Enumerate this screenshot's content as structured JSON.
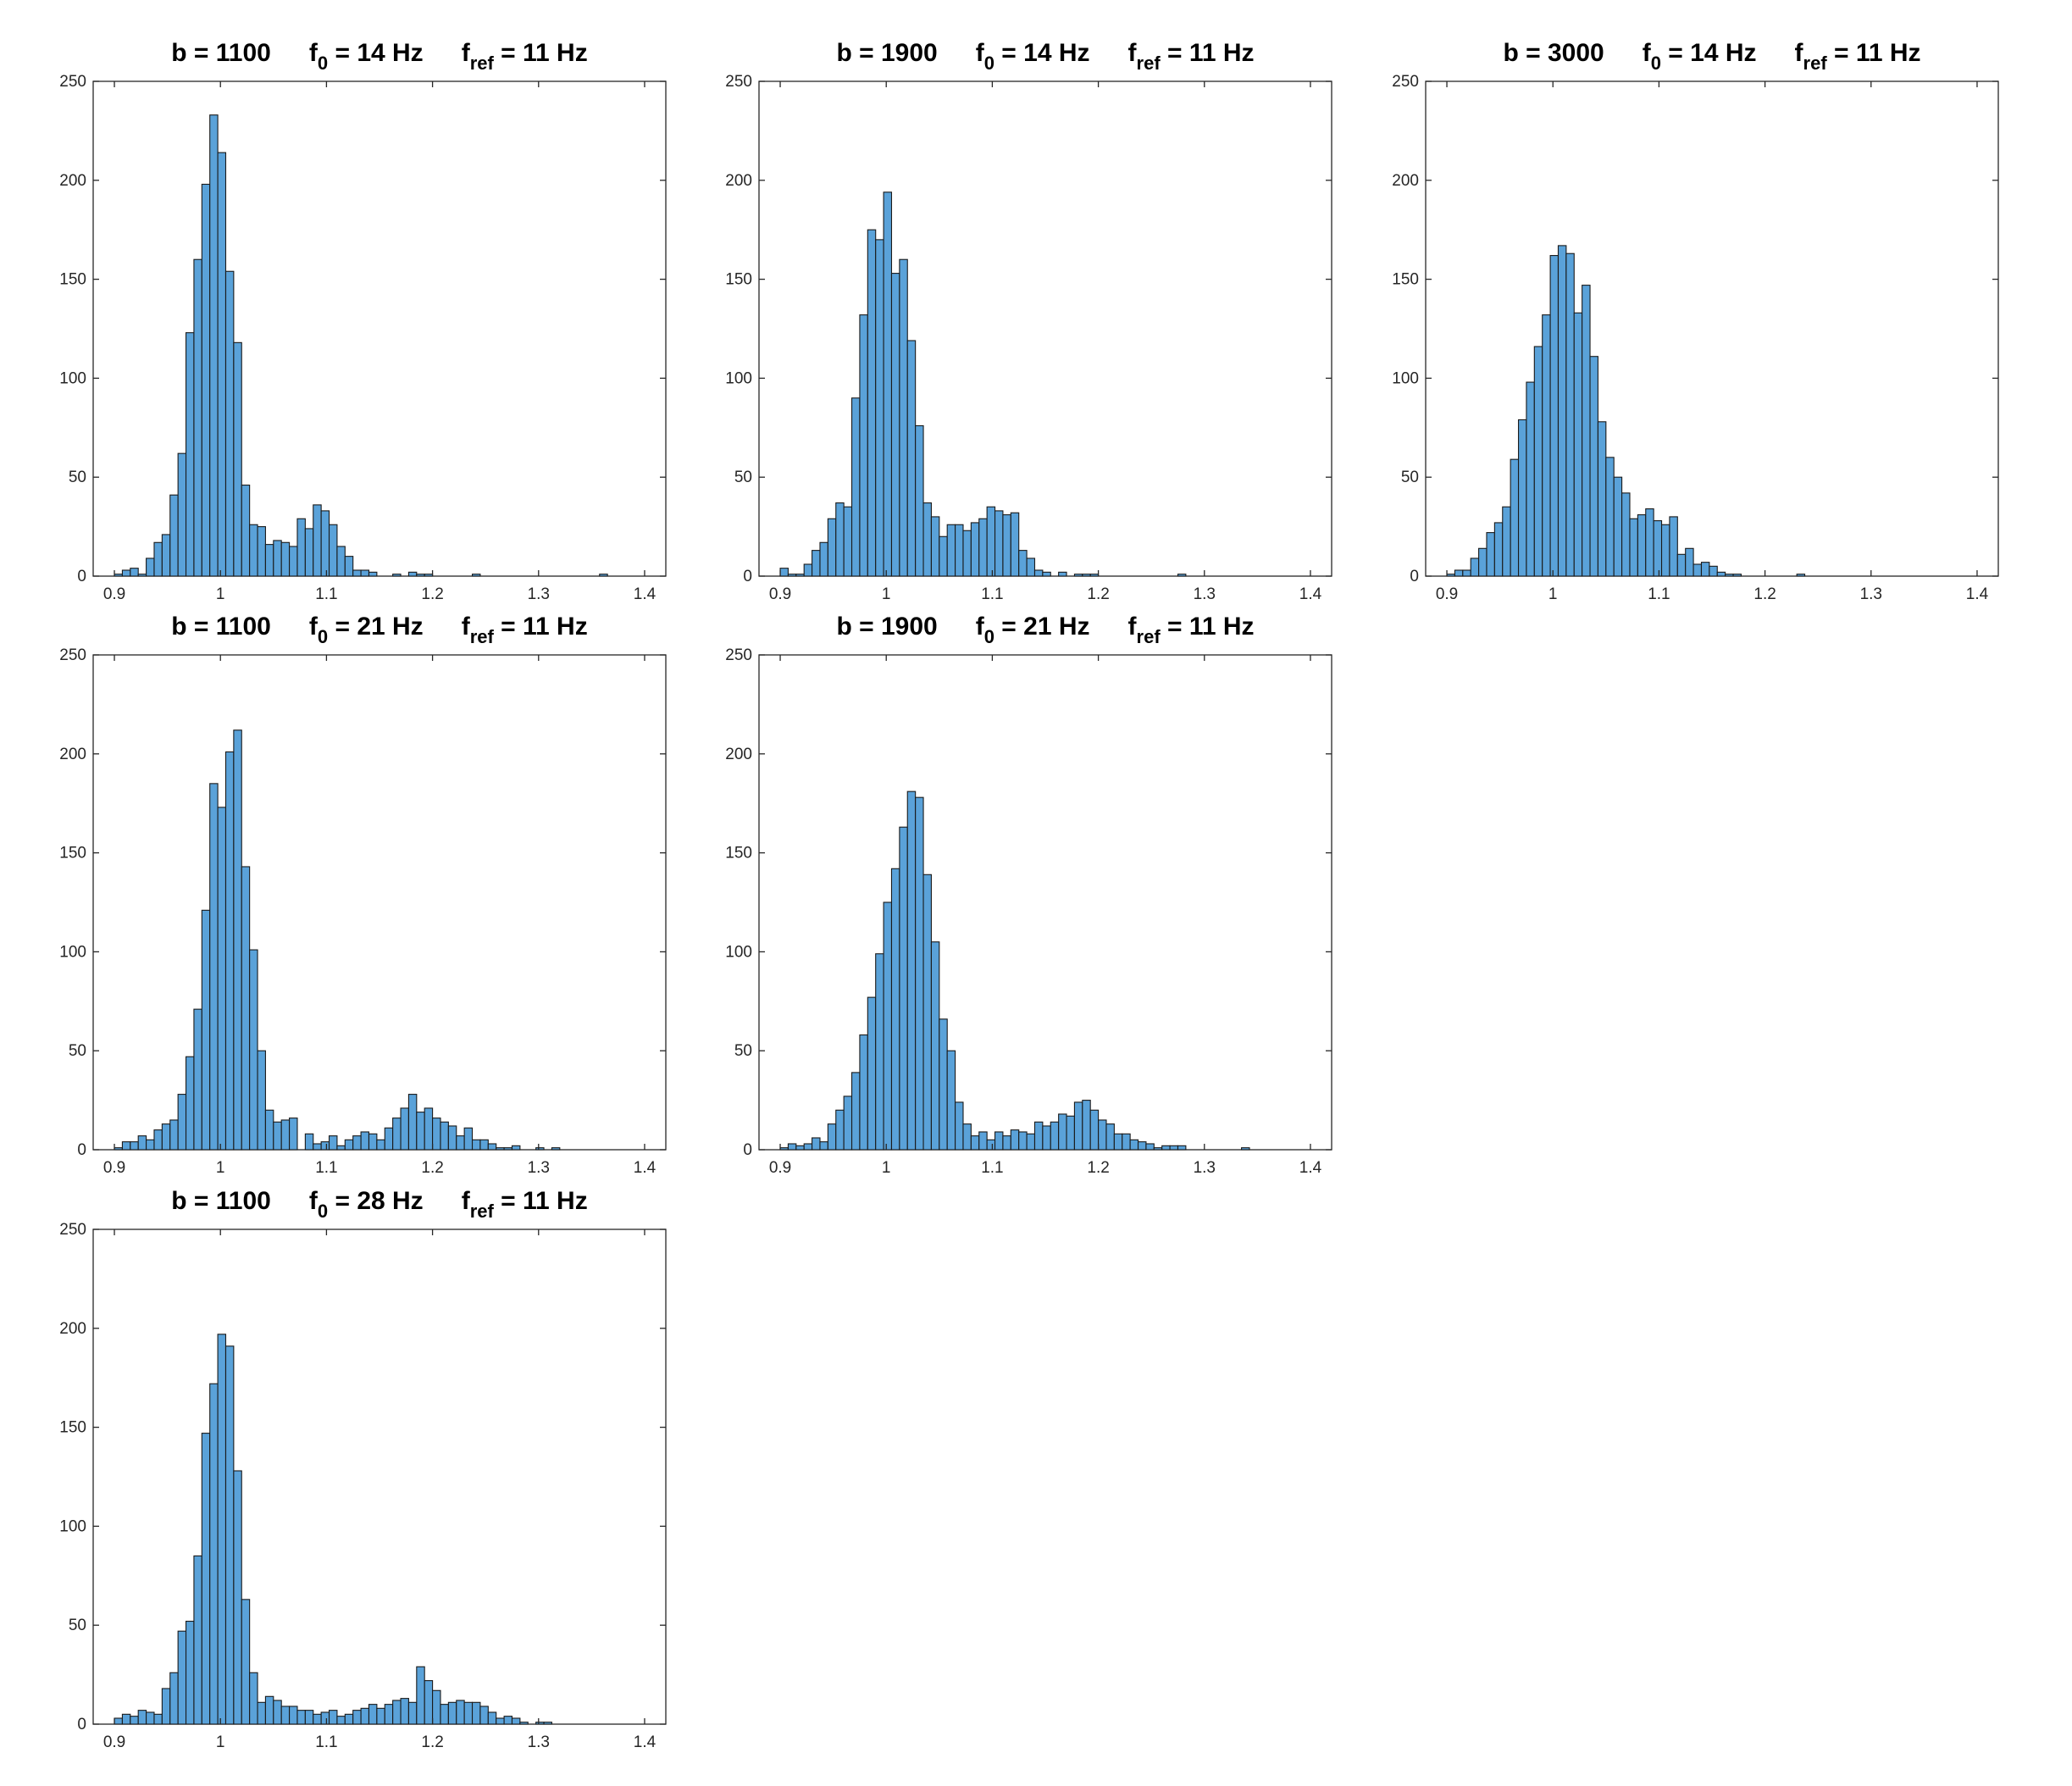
{
  "bar_color": "#5aa2d9",
  "chart_data": [
    {
      "type": "bar",
      "title_parts": {
        "b": "b = 1100",
        "f0_base": "f",
        "f0_sub": "0",
        "f0_val": " = 14 Hz",
        "fref_base": "f",
        "fref_sub": "ref",
        "fref_val": " = 11 Hz"
      },
      "xlim": [
        0.88,
        1.42
      ],
      "ylim": [
        0,
        250
      ],
      "xticks": [
        0.9,
        1,
        1.1,
        1.2,
        1.3,
        1.4
      ],
      "xtick_labels": [
        "0.9",
        "1",
        "1.1",
        "1.2",
        "1.3",
        "1.4"
      ],
      "yticks": [
        0,
        50,
        100,
        150,
        200,
        250
      ],
      "ytick_labels": [
        "0",
        "50",
        "100",
        "150",
        "200",
        "250"
      ],
      "bin_start": 0.9,
      "bin_width": 0.0075,
      "values": [
        1,
        3,
        4,
        1,
        9,
        17,
        21,
        41,
        62,
        123,
        160,
        198,
        233,
        214,
        154,
        118,
        46,
        26,
        25,
        16,
        18,
        17,
        15,
        29,
        24,
        36,
        33,
        26,
        15,
        10,
        3,
        3,
        2,
        0,
        0,
        1,
        0,
        2,
        1,
        1,
        0,
        0,
        0,
        0,
        0,
        1,
        0,
        0,
        0,
        0,
        0,
        0,
        0,
        0,
        0,
        0,
        0,
        0,
        0,
        0,
        0,
        1,
        0
      ]
    },
    {
      "type": "bar",
      "title_parts": {
        "b": "b = 1900",
        "f0_base": "f",
        "f0_sub": "0",
        "f0_val": " = 14 Hz",
        "fref_base": "f",
        "fref_sub": "ref",
        "fref_val": " = 11 Hz"
      },
      "xlim": [
        0.88,
        1.42
      ],
      "ylim": [
        0,
        250
      ],
      "xticks": [
        0.9,
        1,
        1.1,
        1.2,
        1.3,
        1.4
      ],
      "xtick_labels": [
        "0.9",
        "1",
        "1.1",
        "1.2",
        "1.3",
        "1.4"
      ],
      "yticks": [
        0,
        50,
        100,
        150,
        200,
        250
      ],
      "ytick_labels": [
        "0",
        "50",
        "100",
        "150",
        "200",
        "250"
      ],
      "bin_start": 0.9,
      "bin_width": 0.0075,
      "values": [
        4,
        1,
        1,
        6,
        13,
        17,
        29,
        37,
        35,
        90,
        132,
        175,
        170,
        194,
        153,
        160,
        119,
        76,
        37,
        30,
        20,
        26,
        26,
        23,
        27,
        29,
        35,
        33,
        31,
        32,
        13,
        9,
        3,
        2,
        0,
        2,
        0,
        1,
        1,
        1,
        0,
        0,
        0,
        0,
        0,
        0,
        0,
        0,
        0,
        0,
        1,
        0
      ]
    },
    {
      "type": "bar",
      "title_parts": {
        "b": "b = 3000",
        "f0_base": "f",
        "f0_sub": "0",
        "f0_val": " = 14 Hz",
        "fref_base": "f",
        "fref_sub": "ref",
        "fref_val": " = 11 Hz"
      },
      "xlim": [
        0.88,
        1.42
      ],
      "ylim": [
        0,
        250
      ],
      "xticks": [
        0.9,
        1,
        1.1,
        1.2,
        1.3,
        1.4
      ],
      "xtick_labels": [
        "0.9",
        "1",
        "1.1",
        "1.2",
        "1.3",
        "1.4"
      ],
      "yticks": [
        0,
        50,
        100,
        150,
        200,
        250
      ],
      "ytick_labels": [
        "0",
        "50",
        "100",
        "150",
        "200",
        "250"
      ],
      "bin_start": 0.9,
      "bin_width": 0.0075,
      "values": [
        1,
        3,
        3,
        9,
        14,
        22,
        27,
        35,
        59,
        79,
        98,
        116,
        132,
        162,
        167,
        163,
        133,
        147,
        111,
        78,
        60,
        50,
        42,
        29,
        31,
        34,
        28,
        26,
        30,
        11,
        14,
        6,
        7,
        5,
        2,
        1,
        1,
        0,
        0,
        0,
        0,
        0,
        0,
        0,
        1,
        0
      ]
    },
    {
      "type": "bar",
      "title_parts": {
        "b": "b = 1100",
        "f0_base": "f",
        "f0_sub": "0",
        "f0_val": " = 21 Hz",
        "fref_base": "f",
        "fref_sub": "ref",
        "fref_val": " = 11 Hz"
      },
      "xlim": [
        0.88,
        1.42
      ],
      "ylim": [
        0,
        250
      ],
      "xticks": [
        0.9,
        1,
        1.1,
        1.2,
        1.3,
        1.4
      ],
      "xtick_labels": [
        "0.9",
        "1",
        "1.1",
        "1.2",
        "1.3",
        "1.4"
      ],
      "yticks": [
        0,
        50,
        100,
        150,
        200,
        250
      ],
      "ytick_labels": [
        "0",
        "50",
        "100",
        "150",
        "200",
        "250"
      ],
      "bin_start": 0.9,
      "bin_width": 0.0075,
      "values": [
        1,
        4,
        4,
        7,
        5,
        10,
        13,
        15,
        28,
        47,
        71,
        121,
        185,
        173,
        201,
        212,
        143,
        101,
        50,
        20,
        14,
        15,
        16,
        0,
        8,
        3,
        4,
        7,
        2,
        5,
        7,
        9,
        8,
        5,
        11,
        16,
        21,
        28,
        19,
        21,
        16,
        14,
        12,
        7,
        11,
        5,
        5,
        3,
        1,
        1,
        2,
        0,
        0,
        1,
        0,
        1,
        0,
        0,
        0,
        0
      ]
    },
    {
      "type": "bar",
      "title_parts": {
        "b": "b = 1900",
        "f0_base": "f",
        "f0_sub": "0",
        "f0_val": " = 21 Hz",
        "fref_base": "f",
        "fref_sub": "ref",
        "fref_val": " = 11 Hz"
      },
      "xlim": [
        0.88,
        1.42
      ],
      "ylim": [
        0,
        250
      ],
      "xticks": [
        0.9,
        1,
        1.1,
        1.2,
        1.3,
        1.4
      ],
      "xtick_labels": [
        "0.9",
        "1",
        "1.1",
        "1.2",
        "1.3",
        "1.4"
      ],
      "yticks": [
        0,
        50,
        100,
        150,
        200,
        250
      ],
      "ytick_labels": [
        "0",
        "50",
        "100",
        "150",
        "200",
        "250"
      ],
      "bin_start": 0.9,
      "bin_width": 0.0075,
      "values": [
        1,
        3,
        2,
        3,
        6,
        4,
        13,
        20,
        27,
        39,
        58,
        77,
        99,
        125,
        142,
        163,
        181,
        178,
        139,
        105,
        66,
        50,
        24,
        13,
        7,
        9,
        5,
        9,
        7,
        10,
        9,
        8,
        14,
        12,
        14,
        18,
        17,
        24,
        25,
        20,
        15,
        13,
        8,
        8,
        5,
        4,
        3,
        1,
        2,
        2,
        2,
        0,
        0,
        0,
        0,
        0,
        0,
        0,
        1,
        0
      ]
    },
    {
      "type": "bar",
      "title_parts": {
        "b": "b = 1100",
        "f0_base": "f",
        "f0_sub": "0",
        "f0_val": " = 28 Hz",
        "fref_base": "f",
        "fref_sub": "ref",
        "fref_val": " = 11 Hz"
      },
      "xlim": [
        0.88,
        1.42
      ],
      "ylim": [
        0,
        250
      ],
      "xticks": [
        0.9,
        1,
        1.1,
        1.2,
        1.3,
        1.4
      ],
      "xtick_labels": [
        "0.9",
        "1",
        "1.1",
        "1.2",
        "1.3",
        "1.4"
      ],
      "yticks": [
        0,
        50,
        100,
        150,
        200,
        250
      ],
      "ytick_labels": [
        "0",
        "50",
        "100",
        "150",
        "200",
        "250"
      ],
      "bin_start": 0.9,
      "bin_width": 0.0075,
      "values": [
        3,
        5,
        4,
        7,
        6,
        5,
        18,
        26,
        47,
        52,
        85,
        147,
        172,
        197,
        191,
        128,
        63,
        26,
        11,
        14,
        12,
        9,
        9,
        7,
        7,
        5,
        6,
        7,
        4,
        5,
        7,
        8,
        10,
        8,
        10,
        12,
        13,
        11,
        29,
        22,
        17,
        10,
        11,
        12,
        11,
        11,
        9,
        6,
        3,
        4,
        3,
        1,
        0,
        1,
        1,
        0,
        0,
        0,
        0,
        0,
        0,
        0,
        0,
        0
      ]
    }
  ]
}
